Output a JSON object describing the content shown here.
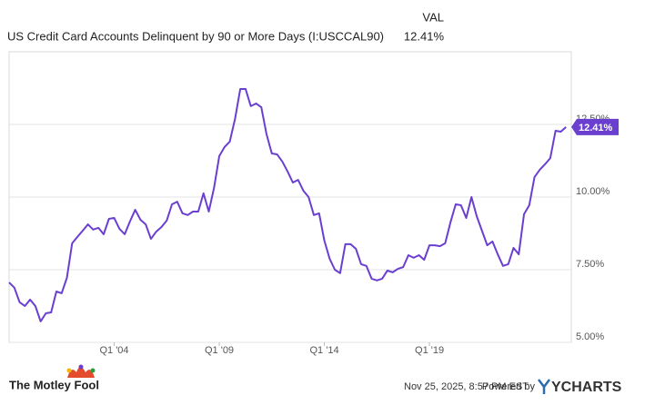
{
  "chart_data": {
    "type": "line",
    "title": "US Credit Card Accounts Delinquent by 90 or More Days (I:USCCAL90)",
    "value_header": "VAL",
    "value_label": "12.41%",
    "x": [
      1999,
      1999.25,
      1999.5,
      1999.75,
      2000,
      2000.25,
      2000.5,
      2000.75,
      2001,
      2001.25,
      2001.5,
      2001.75,
      2002,
      2002.25,
      2002.5,
      2002.75,
      2003,
      2003.25,
      2003.5,
      2003.75,
      2004,
      2004.25,
      2004.5,
      2004.75,
      2005,
      2005.25,
      2005.5,
      2005.75,
      2006,
      2006.25,
      2006.5,
      2006.75,
      2007,
      2007.25,
      2007.5,
      2007.75,
      2008,
      2008.25,
      2008.5,
      2008.75,
      2009,
      2009.25,
      2009.5,
      2009.75,
      2010,
      2010.25,
      2010.5,
      2010.75,
      2011,
      2011.25,
      2011.5,
      2011.75,
      2012,
      2012.25,
      2012.5,
      2012.75,
      2013,
      2013.25,
      2013.5,
      2013.75,
      2014,
      2014.25,
      2014.5,
      2014.75,
      2015,
      2015.25,
      2015.5,
      2015.75,
      2016,
      2016.25,
      2016.5,
      2016.75,
      2017,
      2017.25,
      2017.5,
      2017.75,
      2018,
      2018.25,
      2018.5,
      2018.75,
      2019,
      2019.25,
      2019.5,
      2019.75,
      2020,
      2020.25,
      2020.5,
      2020.75,
      2021,
      2021.25,
      2021.5,
      2021.75,
      2022,
      2022.25,
      2022.5,
      2022.75,
      2023,
      2023.25,
      2023.5,
      2023.75,
      2024,
      2024.25,
      2024.5,
      2024.75,
      2025,
      2025.25,
      2025.5
    ],
    "series": [
      {
        "name": "US Credit Card Accounts Delinquent by 90 or More Days (I:USCCAL90)",
        "color": "#6a3fd0",
        "values": [
          7.06,
          6.88,
          6.38,
          6.25,
          6.47,
          6.25,
          5.72,
          6.0,
          6.03,
          6.75,
          6.69,
          7.22,
          8.41,
          8.63,
          8.84,
          9.06,
          8.88,
          8.94,
          8.72,
          9.25,
          9.28,
          8.91,
          8.72,
          9.16,
          9.56,
          9.22,
          9.06,
          8.56,
          8.81,
          8.97,
          9.19,
          9.75,
          9.84,
          9.44,
          9.38,
          9.5,
          9.5,
          10.13,
          9.5,
          10.31,
          11.41,
          11.72,
          11.91,
          12.69,
          13.72,
          13.72,
          13.13,
          13.22,
          13.09,
          12.16,
          11.5,
          11.47,
          11.22,
          10.88,
          10.5,
          10.59,
          10.22,
          10.0,
          9.38,
          9.44,
          8.5,
          7.88,
          7.5,
          7.38,
          8.38,
          8.38,
          8.22,
          7.69,
          7.63,
          7.19,
          7.13,
          7.19,
          7.47,
          7.41,
          7.53,
          7.59,
          8.0,
          7.91,
          8.0,
          7.84,
          8.34,
          8.34,
          8.31,
          8.41,
          9.13,
          9.75,
          9.72,
          9.28,
          10.0,
          9.34,
          8.84,
          8.34,
          8.47,
          8.03,
          7.63,
          7.69,
          8.25,
          8.03,
          9.41,
          9.72,
          10.69,
          10.94,
          11.13,
          11.34,
          12.28,
          12.25,
          12.41
        ]
      }
    ],
    "xlim": [
      1999,
      2025.75
    ],
    "xticks": [
      {
        "value": 2004,
        "label": "Q1 '04"
      },
      {
        "value": 2009,
        "label": "Q1 '09"
      },
      {
        "value": 2014,
        "label": "Q1 '14"
      },
      {
        "value": 2019,
        "label": "Q1 '19"
      }
    ],
    "ylim": [
      5,
      15
    ],
    "yticks": [
      {
        "value": 5,
        "label": "5.00%"
      },
      {
        "value": 7.5,
        "label": "7.50%"
      },
      {
        "value": 10,
        "label": "10.00%"
      },
      {
        "value": 12.5,
        "label": "12.50%"
      }
    ],
    "grid": true
  },
  "footer": {
    "brand_left": "The Motley Fool",
    "timestamp": "Nov 25, 2025, 8:57 PM EST",
    "powered": "Powered by",
    "brand_right": "YCHARTS"
  }
}
